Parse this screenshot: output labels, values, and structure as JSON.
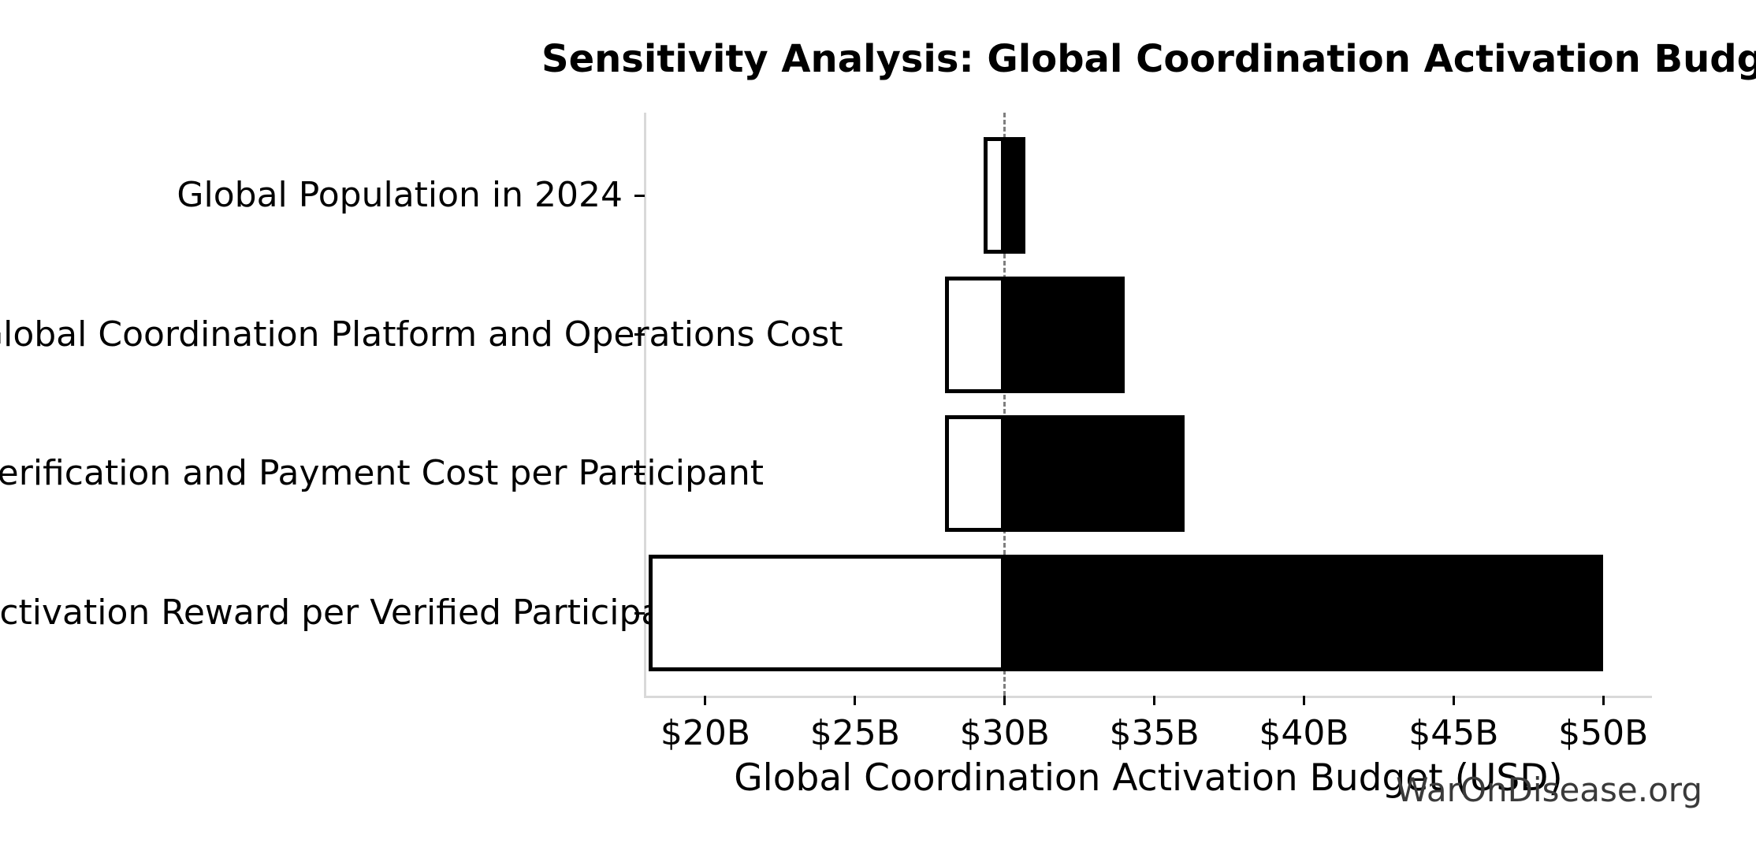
{
  "title": "Sensitivity Analysis: Global Coordination Activation Budget",
  "watermark": "WarOnDisease.org",
  "chart_data": {
    "type": "bar",
    "orientation": "horizontal",
    "subtype": "tornado-sensitivity",
    "title": "Sensitivity Analysis: Global Coordination Activation Budget",
    "xlabel": "Global Coordination Activation Budget (USD)",
    "unit": "billion USD",
    "baseline_value": 30,
    "xlim": [
      18.0,
      51.6
    ],
    "grid": false,
    "legend": false,
    "x_ticks": [
      {
        "value": 20,
        "label": "$20B"
      },
      {
        "value": 25,
        "label": "$25B"
      },
      {
        "value": 30,
        "label": "$30B"
      },
      {
        "value": 35,
        "label": "$35B"
      },
      {
        "value": 40,
        "label": "$40B"
      },
      {
        "value": 45,
        "label": "$45B"
      },
      {
        "value": 50,
        "label": "$50B"
      }
    ],
    "categories": [
      {
        "label": "Global Population in 2024",
        "low": 29.3,
        "high": 30.7
      },
      {
        "label": "Global Coordination Platform and Operations Cost",
        "low": 28.0,
        "high": 34.0
      },
      {
        "label": "Verification and Payment Cost per Participant",
        "low": 28.0,
        "high": 36.0
      },
      {
        "label": "Activation Reward per Verified Participant",
        "low": 18.1,
        "high": 50.0
      }
    ],
    "colors": {
      "low_bar_fill": "#ffffff",
      "low_bar_edge": "#000000",
      "high_bar_fill": "#000000",
      "baseline_line": "#7f7f7f",
      "spine": "#d9d9d9",
      "text": "#000000",
      "watermark_text": "#3a3a3a"
    }
  }
}
